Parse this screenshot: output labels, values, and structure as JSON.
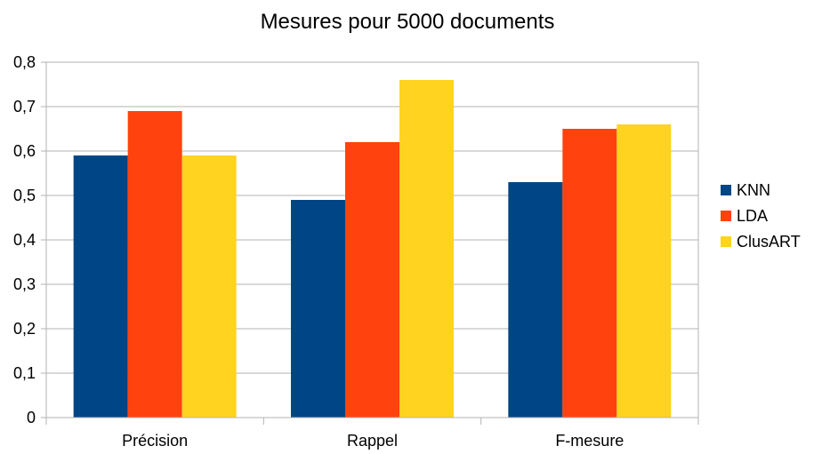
{
  "chart_data": {
    "type": "bar",
    "title": "Mesures pour 5000 documents",
    "categories": [
      "Précision",
      "Rappel",
      "F-mesure"
    ],
    "series": [
      {
        "name": "KNN",
        "values": [
          0.59,
          0.49,
          0.53
        ],
        "color": "#004586"
      },
      {
        "name": "LDA",
        "values": [
          0.69,
          0.62,
          0.65
        ],
        "color": "#ff420e"
      },
      {
        "name": "ClusART",
        "values": [
          0.59,
          0.76,
          0.66
        ],
        "color": "#ffd320"
      }
    ],
    "ylim": [
      0,
      0.8
    ],
    "yticks": [
      0,
      0.1,
      0.2,
      0.3,
      0.4,
      0.5,
      0.6,
      0.7,
      0.8
    ],
    "ytick_labels": [
      "0",
      "0,1",
      "0,2",
      "0,3",
      "0,4",
      "0,5",
      "0,6",
      "0,7",
      "0,8"
    ],
    "grid": true,
    "legend_position": "right"
  }
}
